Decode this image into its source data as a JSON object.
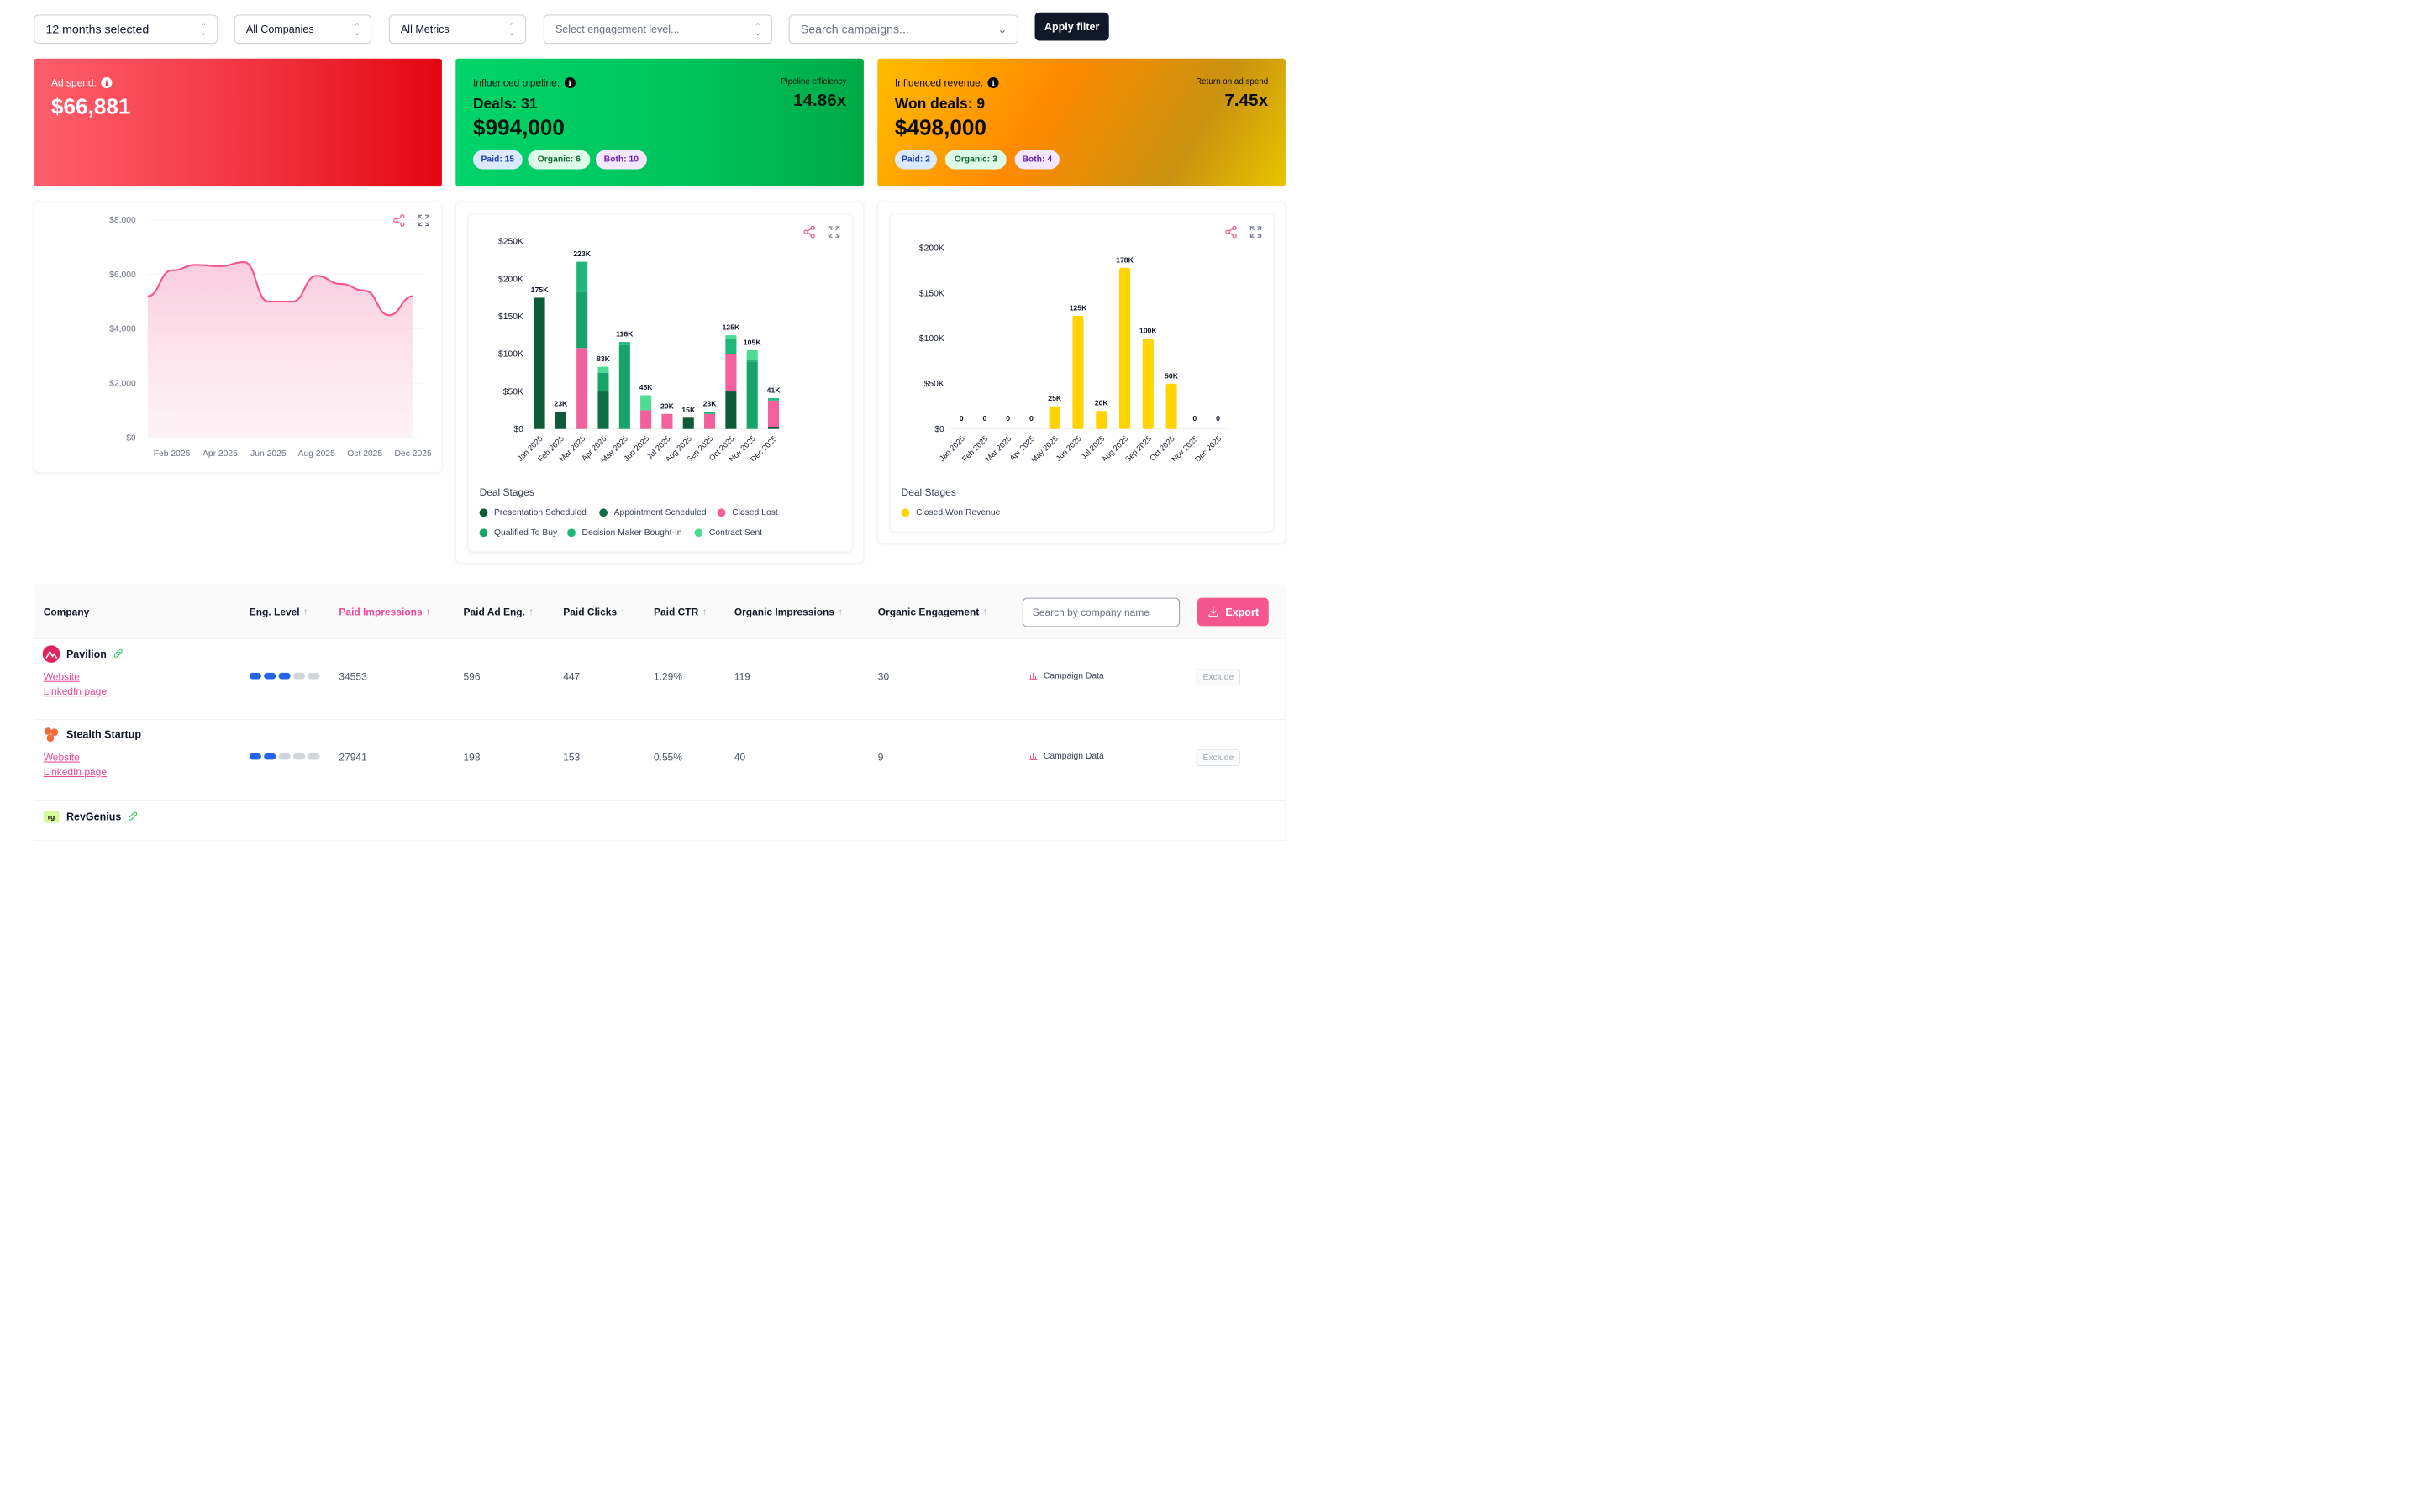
{
  "filters": {
    "period": "12 months selected",
    "companies": "All Companies",
    "metrics": "All Metrics",
    "engagement_placeholder": "Select engagement level...",
    "campaign_placeholder": "Search campaigns...",
    "apply_label": "Apply filter"
  },
  "kpis": {
    "ad_spend": {
      "label": "Ad spend:",
      "value": "$66,881"
    },
    "pipeline": {
      "label": "Influenced pipeline:",
      "deals": "Deals: 31",
      "value": "$994,000",
      "right_label": "Pipeline efficiency",
      "right_value": "14.86x",
      "pills": {
        "paid": "Paid: 15",
        "organic": "Organic: 6",
        "both": "Both: 10"
      }
    },
    "revenue": {
      "label": "Influenced revenue:",
      "deals": "Won deals: 9",
      "value": "$498,000",
      "right_label": "Return on ad spend",
      "right_value": "7.45x",
      "pills": {
        "paid": "Paid: 2",
        "organic": "Organic: 3",
        "both": "Both: 4"
      }
    }
  },
  "colors": {
    "pink": "#f4568f",
    "presentation_scheduled": "#0e5b3a",
    "appointment_scheduled": "#0f6e47",
    "closed_lost": "#f4609b",
    "qualified_to_buy": "#16a46a",
    "decision_maker": "#20b87a",
    "contract_sent": "#4ddc95",
    "closed_won": "#ffd400"
  },
  "chart_data": [
    {
      "type": "area",
      "x": [
        "Jan 2025",
        "Feb 2025",
        "Mar 2025",
        "Apr 2025",
        "May 2025",
        "Jun 2025",
        "Jul 2025",
        "Aug 2025",
        "Sep 2025",
        "Oct 2025",
        "Nov 2025",
        "Dec 2025"
      ],
      "x_tick_labels": [
        "Feb 2025",
        "Apr 2025",
        "Jun 2025",
        "Aug 2025",
        "Oct 2025",
        "Dec 2025"
      ],
      "values": [
        5200,
        6150,
        6350,
        6300,
        6450,
        5000,
        5000,
        5950,
        5650,
        5400,
        4500,
        5200
      ],
      "ylim": [
        0,
        8000
      ],
      "y_ticks": [
        "$0",
        "$2,000",
        "$4,000",
        "$6,000",
        "$8,000"
      ],
      "grid": true
    },
    {
      "type": "bar",
      "stacked": true,
      "categories": [
        "Jan 2025",
        "Feb 2025",
        "Mar 2025",
        "Apr 2025",
        "May 2025",
        "Jun 2025",
        "Jul 2025",
        "Aug 2025",
        "Sep 2025",
        "Oct 2025",
        "Nov 2025",
        "Dec 2025"
      ],
      "totals_label": [
        "175K",
        "23K",
        "223K",
        "83K",
        "116K",
        "45K",
        "20K",
        "15K",
        "23K",
        "125K",
        "105K",
        "41K"
      ],
      "series": [
        {
          "name": "Presentation Scheduled",
          "values": [
            175000,
            23000,
            0,
            0,
            0,
            0,
            0,
            15000,
            0,
            50000,
            0,
            3000
          ]
        },
        {
          "name": "Appointment Scheduled",
          "values": [
            0,
            0,
            0,
            50000,
            0,
            0,
            0,
            0,
            0,
            0,
            0,
            0
          ]
        },
        {
          "name": "Closed Lost",
          "values": [
            0,
            0,
            108000,
            0,
            0,
            25000,
            20000,
            0,
            20000,
            50000,
            0,
            35000
          ]
        },
        {
          "name": "Qualified To Buy",
          "values": [
            0,
            0,
            75000,
            25000,
            112000,
            0,
            0,
            0,
            0,
            0,
            90000,
            0
          ]
        },
        {
          "name": "Decision Maker Bought-In",
          "values": [
            0,
            0,
            40000,
            0,
            4000,
            0,
            0,
            0,
            3000,
            20000,
            2000,
            3000
          ]
        },
        {
          "name": "Contract Sent",
          "values": [
            0,
            0,
            0,
            8000,
            0,
            20000,
            0,
            0,
            0,
            5000,
            13000,
            0
          ]
        }
      ],
      "ylim": [
        0,
        250000
      ],
      "y_ticks": [
        "$0",
        "$50K",
        "$100K",
        "$150K",
        "$200K",
        "$250K"
      ]
    },
    {
      "type": "bar",
      "categories": [
        "Jan 2025",
        "Feb 2025",
        "Mar 2025",
        "Apr 2025",
        "May 2025",
        "Jun 2025",
        "Jul 2025",
        "Aug 2025",
        "Sep 2025",
        "Oct 2025",
        "Nov 2025",
        "Dec 2025"
      ],
      "value_labels": [
        "0",
        "0",
        "0",
        "0",
        "25K",
        "125K",
        "20K",
        "178K",
        "100K",
        "50K",
        "0",
        "0"
      ],
      "series": [
        {
          "name": "Closed Won Revenue",
          "values": [
            0,
            0,
            0,
            0,
            25000,
            125000,
            20000,
            178000,
            100000,
            50000,
            0,
            0
          ]
        }
      ],
      "ylim": [
        0,
        200000
      ],
      "y_ticks": [
        "$0",
        "$50K",
        "$100K",
        "$150K",
        "$200K"
      ]
    }
  ],
  "legends": {
    "pipeline_title": "Deal Stages",
    "pipeline_items": [
      "Presentation Scheduled",
      "Appointment Scheduled",
      "Closed Lost",
      "Qualified To Buy",
      "Decision Maker Bought-In",
      "Contract Sent"
    ],
    "revenue_title": "Deal Stages",
    "revenue_items": [
      "Closed Won Revenue"
    ]
  },
  "table": {
    "headers": {
      "company": "Company",
      "eng_level": "Eng. Level",
      "paid_impressions": "Paid Impressions",
      "paid_ad_eng": "Paid Ad Eng.",
      "paid_clicks": "Paid Clicks",
      "paid_ctr": "Paid CTR",
      "organic_impressions": "Organic Impressions",
      "organic_engagement": "Organic Engagement"
    },
    "search_placeholder": "Search by company name",
    "export_label": "Export",
    "rows": [
      {
        "name": "Pavilion",
        "website": "Website",
        "linkedin": "LinkedIn page",
        "eng_level": 3,
        "paid_impressions": "34553",
        "paid_ad_eng": "596",
        "paid_clicks": "447",
        "paid_ctr": "1.29%",
        "organic_impressions": "119",
        "organic_engagement": "30",
        "campaign": "Campaign Data",
        "exclude": "Exclude"
      },
      {
        "name": "Stealth Startup",
        "website": "Website",
        "linkedin": "LinkedIn page",
        "eng_level": 2,
        "paid_impressions": "27941",
        "paid_ad_eng": "198",
        "paid_clicks": "153",
        "paid_ctr": "0.55%",
        "organic_impressions": "40",
        "organic_engagement": "9",
        "campaign": "Campaign Data",
        "exclude": "Exclude"
      },
      {
        "name": "RevGenius"
      }
    ]
  }
}
